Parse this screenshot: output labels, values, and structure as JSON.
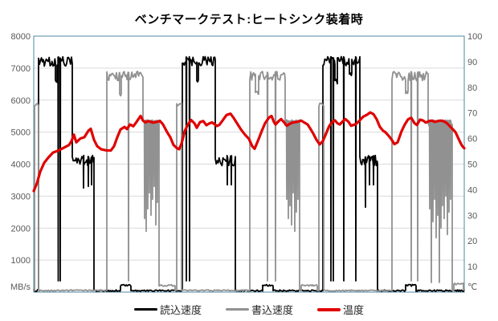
{
  "title": "ベンチマークテスト:ヒートシンク装着時",
  "colors": {
    "read": "#000000",
    "write": "#919191",
    "temperature": "#E00000",
    "plot_border": "#4D87A1",
    "gridline": "#D9D9D9",
    "tick_text": "#595959",
    "background": "#ffffff"
  },
  "axes": {
    "left": {
      "unit_label": "MB/s",
      "range": [
        0,
        8000
      ],
      "ticks": [
        "8000",
        "7000",
        "6000",
        "5000",
        "4000",
        "3000",
        "2000",
        "1000"
      ],
      "tick_values": [
        8000,
        7000,
        6000,
        5000,
        4000,
        3000,
        2000,
        1000
      ]
    },
    "right": {
      "unit_label": "℃",
      "range": [
        0,
        100
      ],
      "ticks": [
        "100",
        "90",
        "80",
        "70",
        "60",
        "50",
        "40",
        "30",
        "20",
        "10"
      ],
      "tick_values": [
        100,
        90,
        80,
        70,
        60,
        50,
        40,
        30,
        20,
        10
      ]
    },
    "x": {
      "label": "",
      "ticks": [],
      "note": "time axis, no tick labels",
      "range": [
        0,
        536
      ]
    },
    "grid": "horizontal-only"
  },
  "legend": {
    "items": [
      {
        "key": "read-speed",
        "label": "読込速度",
        "color": "#000000",
        "thickness": 3
      },
      {
        "key": "write-speed",
        "label": "書込速度",
        "color": "#919191",
        "thickness": 3
      },
      {
        "key": "temperature",
        "label": "温度",
        "color": "#E00000",
        "thickness": 4
      }
    ]
  },
  "chart_data": {
    "type": "line",
    "title": "ベンチマークテスト:ヒートシンク装着時",
    "xlabel": "",
    "ylabel_left": "MB/s",
    "ylabel_right": "℃",
    "ylim_left": [
      0,
      8000
    ],
    "ylim_right": [
      0,
      100
    ],
    "legend_position": "bottom",
    "series": [
      {
        "name": "読込速度",
        "key": "read-speed",
        "axis": "left",
        "color": "#000000",
        "shape": "noisy-square-wave",
        "segments": [
          [
            0,
            6,
            80,
            60
          ],
          [
            6,
            27,
            7360,
            300
          ],
          [
            27,
            29,
            6650,
            150
          ],
          [
            29,
            48,
            7360,
            300
          ],
          [
            48,
            75,
            4280,
            330
          ],
          [
            75,
            108,
            70,
            50
          ],
          [
            108,
            121,
            240,
            60
          ],
          [
            121,
            185,
            70,
            50
          ],
          [
            185,
            203,
            7360,
            300
          ],
          [
            203,
            205,
            6650,
            150
          ],
          [
            205,
            226,
            7360,
            300
          ],
          [
            226,
            251,
            4280,
            330
          ],
          [
            251,
            285,
            70,
            50
          ],
          [
            285,
            298,
            240,
            60
          ],
          [
            298,
            360,
            70,
            50
          ],
          [
            360,
            375,
            7360,
            300
          ],
          [
            375,
            378,
            6650,
            150
          ],
          [
            378,
            393,
            7360,
            300
          ],
          [
            393,
            396,
            6900,
            150
          ],
          [
            396,
            406,
            7360,
            300
          ],
          [
            406,
            428,
            4280,
            330
          ],
          [
            428,
            463,
            70,
            50
          ],
          [
            463,
            476,
            240,
            60
          ],
          [
            476,
            536,
            70,
            50
          ]
        ],
        "spikes": [
          [
            30.5,
            350
          ],
          [
            33,
            350
          ],
          [
            62,
            3250
          ],
          [
            68,
            3300
          ],
          [
            72,
            3350
          ],
          [
            190,
            350
          ],
          [
            194,
            350
          ],
          [
            241,
            3350
          ],
          [
            246,
            3350
          ],
          [
            370,
            350
          ],
          [
            373,
            350
          ],
          [
            386,
            350
          ],
          [
            401,
            350
          ],
          [
            413,
            2650
          ],
          [
            418,
            3350
          ],
          [
            423,
            3350
          ]
        ]
      },
      {
        "name": "書込速度",
        "key": "write-speed",
        "axis": "left",
        "color": "#919191",
        "shape": "noisy-square-wave",
        "segments": [
          [
            0,
            1,
            80,
            40
          ],
          [
            1,
            6,
            5920,
            120
          ],
          [
            6,
            91,
            70,
            40
          ],
          [
            91,
            107,
            6900,
            300
          ],
          [
            107,
            109,
            6200,
            100
          ],
          [
            109,
            136,
            6900,
            300
          ],
          [
            136,
            156,
            5380,
            200
          ],
          [
            156,
            176,
            230,
            50
          ],
          [
            176,
            178,
            80,
            40
          ],
          [
            178,
            184,
            5920,
            120
          ],
          [
            184,
            269,
            70,
            40
          ],
          [
            269,
            276,
            6900,
            300
          ],
          [
            276,
            280,
            6280,
            100
          ],
          [
            280,
            313,
            6900,
            300
          ],
          [
            313,
            331,
            5380,
            200
          ],
          [
            331,
            333,
            80,
            40
          ],
          [
            333,
            353,
            230,
            50
          ],
          [
            353,
            355,
            80,
            40
          ],
          [
            355,
            361,
            5920,
            120
          ],
          [
            361,
            446,
            70,
            40
          ],
          [
            446,
            463,
            6900,
            300
          ],
          [
            463,
            466,
            6280,
            100
          ],
          [
            466,
            491,
            6900,
            300
          ],
          [
            491,
            521,
            5380,
            200
          ],
          [
            521,
            523,
            80,
            40
          ],
          [
            523,
            535,
            280,
            50
          ],
          [
            535,
            536,
            80,
            40
          ]
        ],
        "spikes": [
          [
            118,
            350
          ],
          [
            138,
            2300
          ],
          [
            140,
            1900
          ],
          [
            142,
            2600
          ],
          [
            144,
            3100
          ],
          [
            146,
            2400
          ],
          [
            148,
            2900
          ],
          [
            150,
            3300
          ],
          [
            152,
            2100
          ],
          [
            154,
            2800
          ],
          [
            291,
            350
          ],
          [
            301,
            350
          ],
          [
            315,
            2900
          ],
          [
            317,
            2300
          ],
          [
            319,
            2700
          ],
          [
            321,
            2100
          ],
          [
            323,
            3100
          ],
          [
            325,
            1900
          ],
          [
            327,
            2500
          ],
          [
            329,
            2900
          ],
          [
            470,
            350
          ],
          [
            478,
            350
          ],
          [
            493,
            2600
          ],
          [
            495,
            300
          ],
          [
            497,
            2200
          ],
          [
            499,
            2900
          ],
          [
            501,
            1700
          ],
          [
            503,
            2400
          ],
          [
            505,
            300
          ],
          [
            507,
            2000
          ],
          [
            509,
            2700
          ],
          [
            511,
            2300
          ],
          [
            513,
            3000
          ],
          [
            515,
            1800
          ],
          [
            517,
            2500
          ],
          [
            519,
            2900
          ]
        ]
      },
      {
        "name": "温度",
        "key": "temperature",
        "axis": "right",
        "color": "#E00000",
        "shape": "polyline",
        "points": [
          [
            0,
            39.5
          ],
          [
            4,
            42.5
          ],
          [
            8,
            47
          ],
          [
            13,
            50.5
          ],
          [
            18,
            52.5
          ],
          [
            24,
            54.5
          ],
          [
            30,
            55.2
          ],
          [
            38,
            56.5
          ],
          [
            44,
            57.5
          ],
          [
            47,
            59
          ],
          [
            50,
            61.5
          ],
          [
            53,
            58.5
          ],
          [
            58,
            60
          ],
          [
            63,
            60.5
          ],
          [
            68,
            63
          ],
          [
            71,
            63.8
          ],
          [
            75,
            59.5
          ],
          [
            79,
            57
          ],
          [
            84,
            55.8
          ],
          [
            90,
            55.4
          ],
          [
            96,
            55.3
          ],
          [
            100,
            57
          ],
          [
            104,
            60.5
          ],
          [
            108,
            63.5
          ],
          [
            113,
            64.5
          ],
          [
            116,
            63.7
          ],
          [
            120,
            65.5
          ],
          [
            124,
            64.8
          ],
          [
            128,
            66.5
          ],
          [
            133,
            68.8
          ],
          [
            136,
            67
          ],
          [
            139,
            66.3
          ],
          [
            143,
            66.8
          ],
          [
            148,
            66.2
          ],
          [
            153,
            66.5
          ],
          [
            157,
            66.9
          ],
          [
            161,
            65.5
          ],
          [
            166,
            62.5
          ],
          [
            170,
            60.5
          ],
          [
            174,
            57.5
          ],
          [
            178,
            56.3
          ],
          [
            181,
            55.8
          ],
          [
            184,
            58
          ],
          [
            188,
            62.9
          ],
          [
            192,
            65.5
          ],
          [
            196,
            67.2
          ],
          [
            200,
            66
          ],
          [
            203,
            64.2
          ],
          [
            207,
            66.4
          ],
          [
            211,
            66.8
          ],
          [
            215,
            65.2
          ],
          [
            218,
            65.8
          ],
          [
            222,
            66.3
          ],
          [
            225,
            65.6
          ],
          [
            228,
            64.9
          ],
          [
            231,
            65.3
          ],
          [
            235,
            67
          ],
          [
            240,
            69.2
          ],
          [
            245,
            69.7
          ],
          [
            249,
            68
          ],
          [
            253,
            66
          ],
          [
            258,
            63.5
          ],
          [
            263,
            61.5
          ],
          [
            268,
            59.8
          ],
          [
            272,
            57
          ],
          [
            275,
            56
          ],
          [
            279,
            59
          ],
          [
            284,
            63
          ],
          [
            288,
            66
          ],
          [
            293,
            68.2
          ],
          [
            296,
            68.8
          ],
          [
            299,
            66.5
          ],
          [
            301,
            65.5
          ],
          [
            305,
            66.8
          ],
          [
            308,
            67.6
          ],
          [
            312,
            66.2
          ],
          [
            315,
            65
          ],
          [
            319,
            65.8
          ],
          [
            322,
            66.2
          ],
          [
            326,
            66.4
          ],
          [
            329,
            66.6
          ],
          [
            333,
            67
          ],
          [
            337,
            66.2
          ],
          [
            341,
            65.5
          ],
          [
            345,
            63.5
          ],
          [
            348,
            61.9
          ],
          [
            352,
            59.5
          ],
          [
            356,
            57.7
          ],
          [
            360,
            59
          ],
          [
            364,
            62
          ],
          [
            368,
            65
          ],
          [
            372,
            66.5
          ],
          [
            375,
            67.1
          ],
          [
            378,
            66
          ],
          [
            381,
            65.5
          ],
          [
            385,
            66.8
          ],
          [
            388,
            67.6
          ],
          [
            392,
            66.5
          ],
          [
            395,
            65
          ],
          [
            398,
            65.3
          ],
          [
            401,
            65.6
          ],
          [
            405,
            66.8
          ],
          [
            410,
            68.5
          ],
          [
            415,
            69.3
          ],
          [
            419,
            70.2
          ],
          [
            423,
            69.5
          ],
          [
            427,
            67.5
          ],
          [
            431,
            64.5
          ],
          [
            435,
            63
          ],
          [
            438,
            62.4
          ],
          [
            442,
            61
          ],
          [
            445,
            59.8
          ],
          [
            449,
            57.8
          ],
          [
            453,
            58.5
          ],
          [
            458,
            62.9
          ],
          [
            462,
            65.5
          ],
          [
            466,
            67.5
          ],
          [
            470,
            68.1
          ],
          [
            474,
            66
          ],
          [
            477,
            65.3
          ],
          [
            481,
            67.4
          ],
          [
            485,
            67
          ],
          [
            488,
            66.2
          ],
          [
            492,
            66.8
          ],
          [
            496,
            67
          ],
          [
            499,
            66.5
          ],
          [
            503,
            66.8
          ],
          [
            506,
            67
          ],
          [
            509,
            66.9
          ],
          [
            513,
            66.3
          ],
          [
            516,
            65.5
          ],
          [
            519,
            64.5
          ],
          [
            522,
            63.5
          ],
          [
            525,
            62.5
          ],
          [
            528,
            60.5
          ],
          [
            531,
            58.5
          ],
          [
            533,
            57.3
          ],
          [
            535,
            56.5
          ],
          [
            536,
            56.2
          ]
        ]
      }
    ]
  }
}
